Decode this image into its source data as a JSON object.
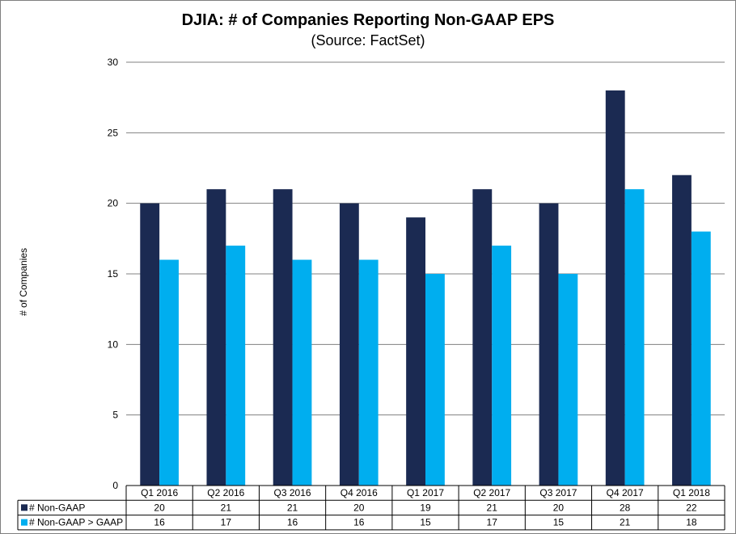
{
  "chart_data": {
    "type": "bar",
    "title": "DJIA: # of Companies Reporting Non-GAAP EPS",
    "subtitle": "(Source: FactSet)",
    "ylabel": "# of Companies",
    "xlabel": "",
    "ylim": [
      0,
      30
    ],
    "yticks": [
      0,
      5,
      10,
      15,
      20,
      25,
      30
    ],
    "grid": true,
    "legend": "data-table",
    "categories": [
      "Q1 2016",
      "Q2 2016",
      "Q3 2016",
      "Q4 2016",
      "Q1 2017",
      "Q2 2017",
      "Q3 2017",
      "Q4 2017",
      "Q1 2018"
    ],
    "series": [
      {
        "name": "# Non-GAAP",
        "color": "#1b2a52",
        "values": [
          20,
          21,
          21,
          20,
          19,
          21,
          20,
          28,
          22
        ]
      },
      {
        "name": "# Non-GAAP > GAAP",
        "color": "#00aeef",
        "values": [
          16,
          17,
          16,
          16,
          15,
          17,
          15,
          21,
          18
        ]
      }
    ]
  }
}
